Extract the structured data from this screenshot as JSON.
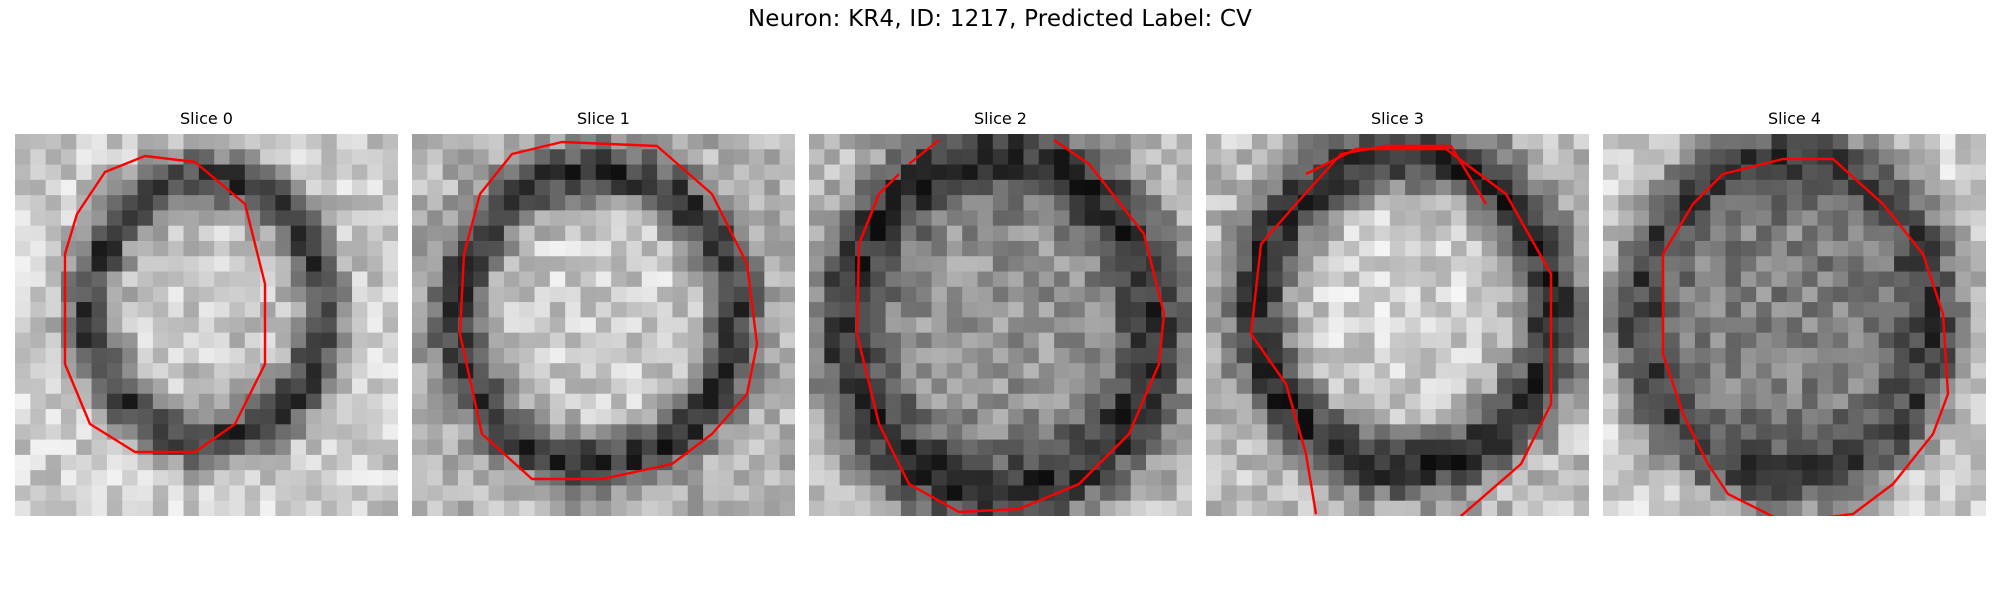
{
  "figure": {
    "title": "Neuron: KR4, ID: 1217, Predicted Label: CV",
    "contour_color": "#ff0000"
  },
  "panels": [
    {
      "title": "Slice 0"
    },
    {
      "title": "Slice 1"
    },
    {
      "title": "Slice 2"
    },
    {
      "title": "Slice 3"
    },
    {
      "title": "Slice 4"
    }
  ]
}
